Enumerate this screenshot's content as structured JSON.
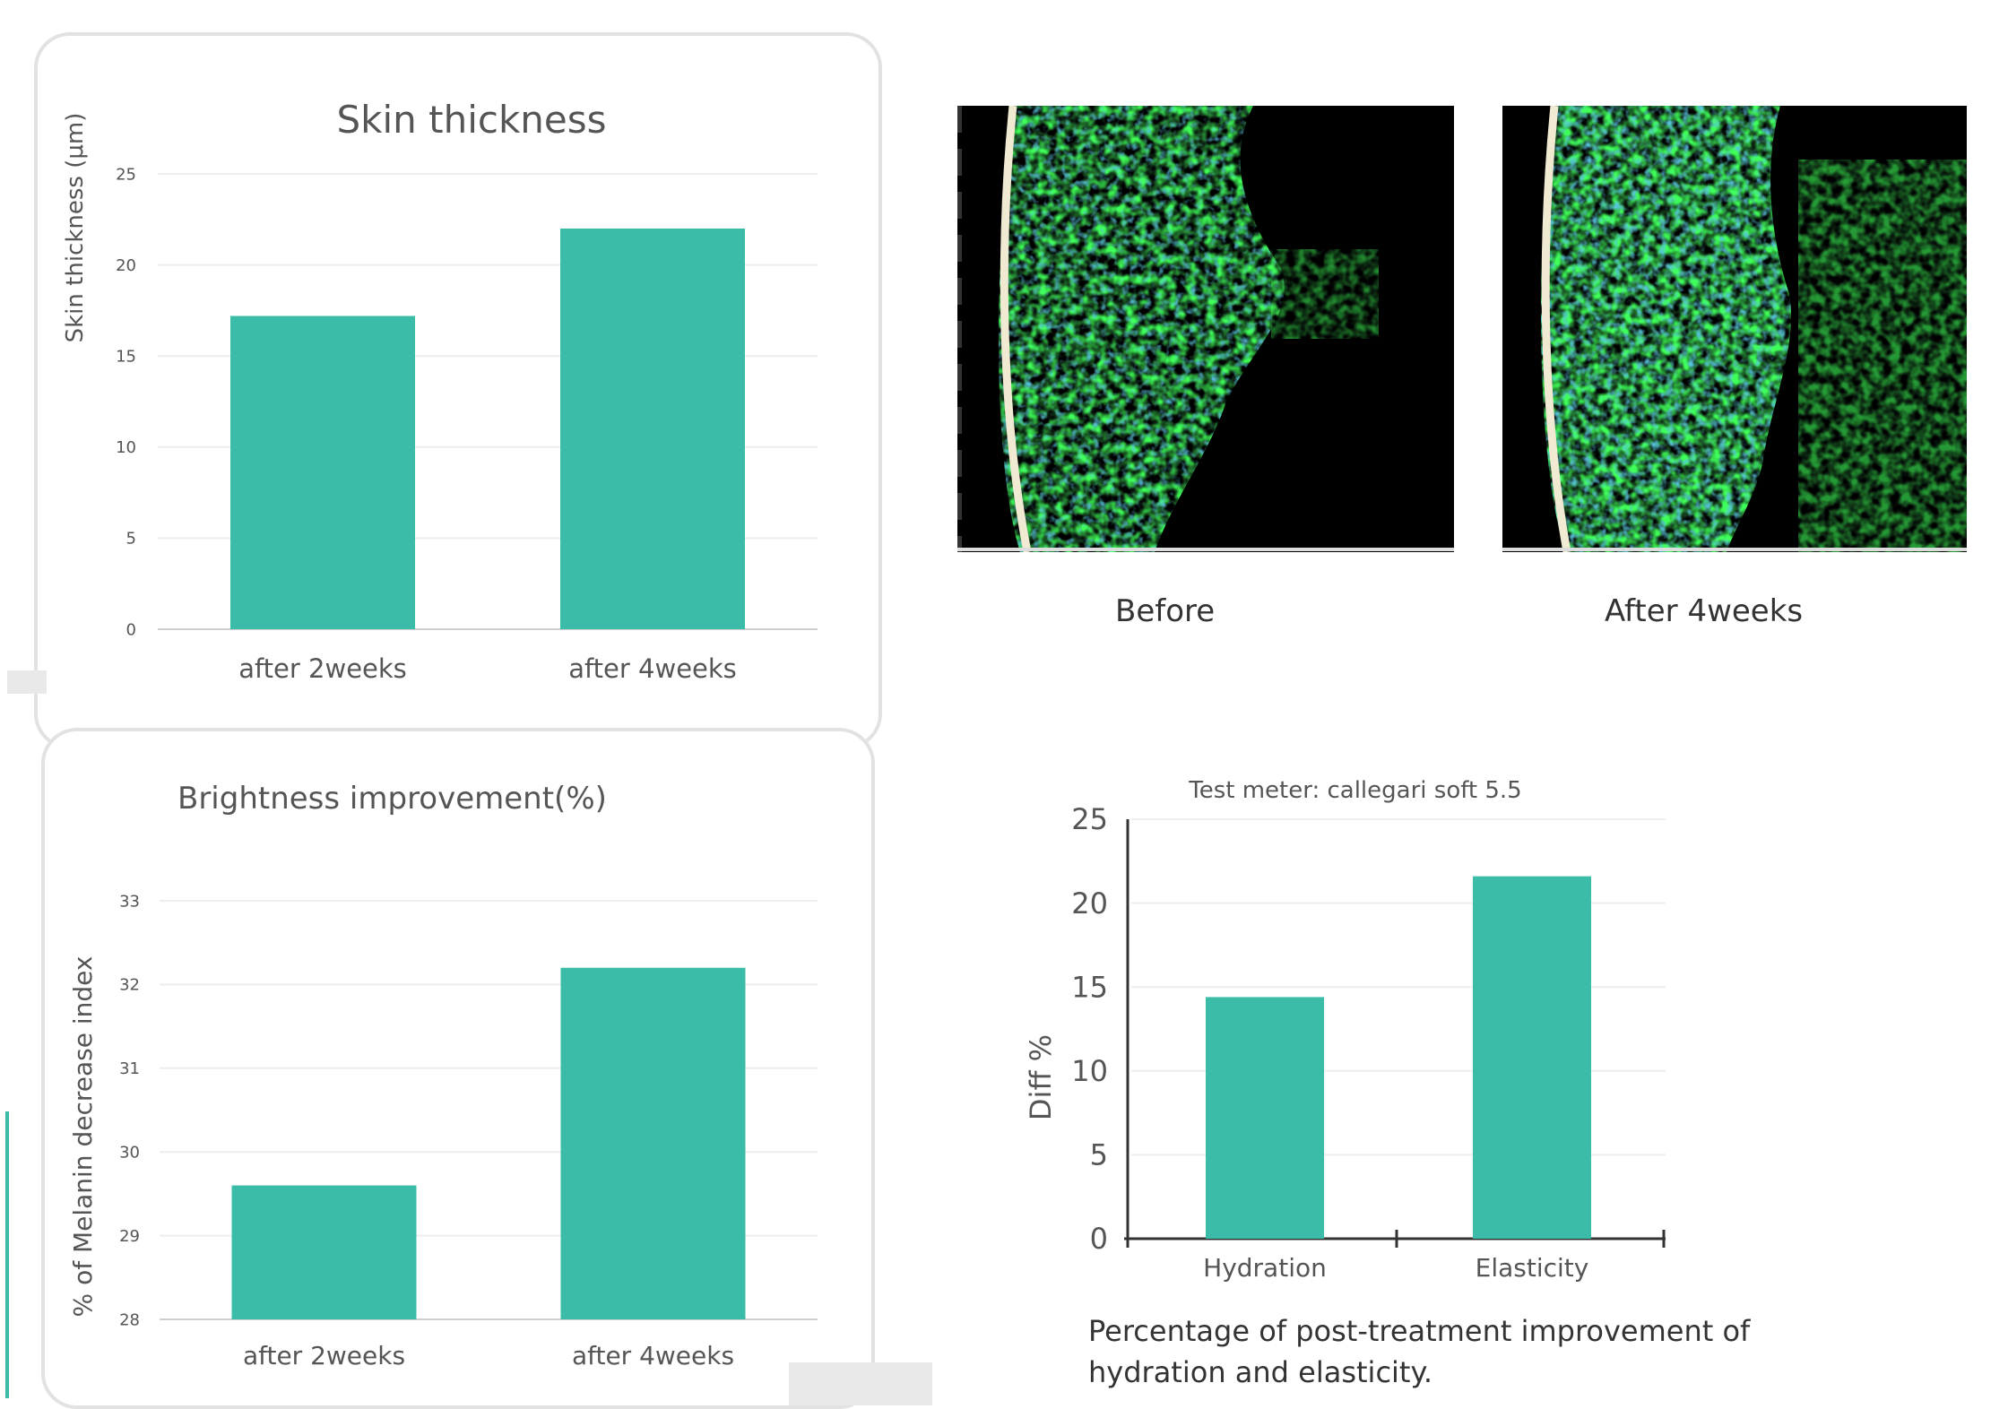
{
  "charts": {
    "skin": {
      "title": "Skin thickness",
      "ylabel": "Skin thickness (μm)"
    },
    "brightness": {
      "title": "Brightness improvement(%)",
      "ylabel": "% of  Melanin decrease index"
    },
    "hydration": {
      "subtitle": "Test meter: callegari soft 5.5",
      "ylabel": "Diff %",
      "caption": "Percentage of post-treatment improvement of hydration and elasticity."
    }
  },
  "images": {
    "before_label": "Before",
    "after_label": "After 4weeks"
  },
  "colors": {
    "bar": "#3bbca9",
    "gridline": "#eeeeee",
    "axis": "#cccccc",
    "micrograph_tissue": "#1fb81f"
  },
  "chart_data": [
    {
      "type": "bar",
      "title": "Skin thickness",
      "ylabel": "Skin thickness (μm)",
      "xlabel": "",
      "categories": [
        "after 2weeks",
        "after 4weeks"
      ],
      "values": [
        17.2,
        22.0
      ],
      "ylim": [
        0,
        25
      ],
      "yticks": [
        0,
        5,
        10,
        15,
        20,
        25
      ],
      "grid": true
    },
    {
      "type": "bar",
      "title": "Brightness improvement(%)",
      "ylabel": "% of  Melanin decrease index",
      "xlabel": "",
      "categories": [
        "after 2weeks",
        "after 4weeks"
      ],
      "values": [
        29.6,
        32.2
      ],
      "ylim": [
        28,
        33
      ],
      "yticks": [
        28,
        29,
        30,
        31,
        32,
        33
      ],
      "grid": true
    },
    {
      "type": "bar",
      "title": "Test meter: callegari soft 5.5",
      "ylabel": "Diff %",
      "xlabel": "",
      "categories": [
        "Hydration",
        "Elasticity"
      ],
      "values": [
        14.4,
        21.6
      ],
      "ylim": [
        0,
        25
      ],
      "yticks": [
        0,
        5,
        10,
        15,
        20,
        25
      ],
      "grid": true
    }
  ]
}
